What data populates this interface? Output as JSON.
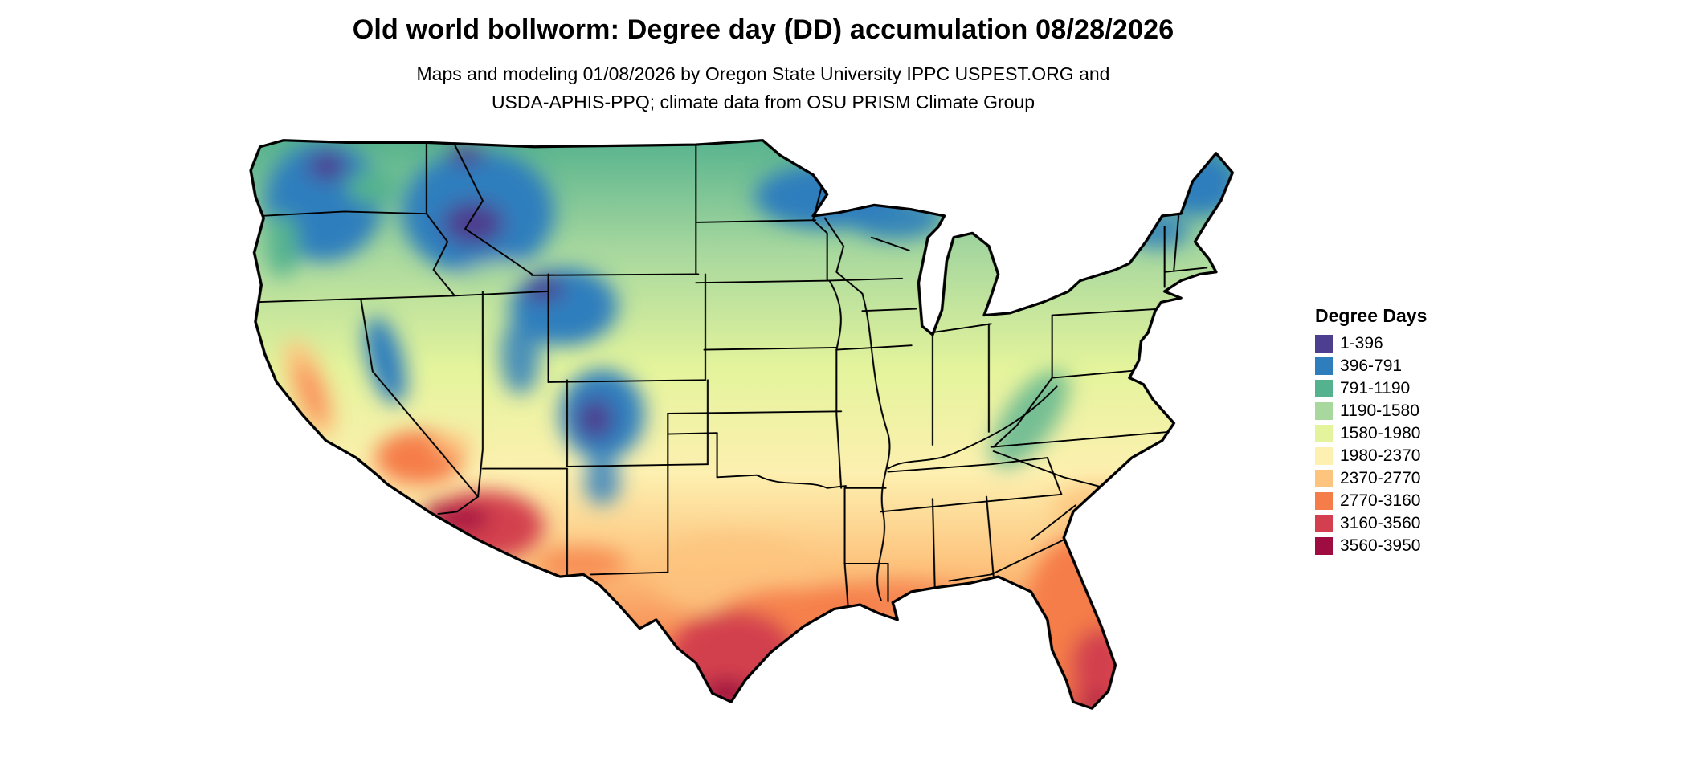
{
  "header": {
    "title": "Old world bollworm: Degree day (DD) accumulation 08/28/2026",
    "subtitle_line1": "Maps and modeling 01/08/2026 by Oregon State University IPPC USPEST.ORG and",
    "subtitle_line2": "USDA-APHIS-PPQ; climate data from OSU PRISM Climate Group"
  },
  "legend": {
    "title": "Degree Days",
    "entries": [
      {
        "label": "1-396",
        "color": "#4d3e8f"
      },
      {
        "label": "396-791",
        "color": "#2e7ebd"
      },
      {
        "label": "791-1190",
        "color": "#55b28e"
      },
      {
        "label": "1190-1580",
        "color": "#a8d89e"
      },
      {
        "label": "1580-1980",
        "color": "#e4f49c"
      },
      {
        "label": "1980-2370",
        "color": "#fdf0b0"
      },
      {
        "label": "2370-2770",
        "color": "#fdc47e"
      },
      {
        "label": "2770-3160",
        "color": "#f57d4a"
      },
      {
        "label": "3160-3560",
        "color": "#d33f4e"
      },
      {
        "label": "3560-3950",
        "color": "#9e0c41"
      }
    ]
  },
  "chart_data": {
    "type": "heatmap",
    "title": "Old world bollworm: Degree day (DD) accumulation 08/28/2026",
    "legend_title": "Degree Days",
    "region": "Contiguous United States",
    "bin_edges": [
      1,
      396,
      791,
      1190,
      1580,
      1980,
      2370,
      2770,
      3160,
      3560,
      3950
    ],
    "bin_colors": [
      "#4d3e8f",
      "#2e7ebd",
      "#55b28e",
      "#a8d89e",
      "#e4f49c",
      "#fdf0b0",
      "#fdc47e",
      "#f57d4a",
      "#d33f4e",
      "#9e0c41"
    ],
    "legend_position": "right"
  }
}
